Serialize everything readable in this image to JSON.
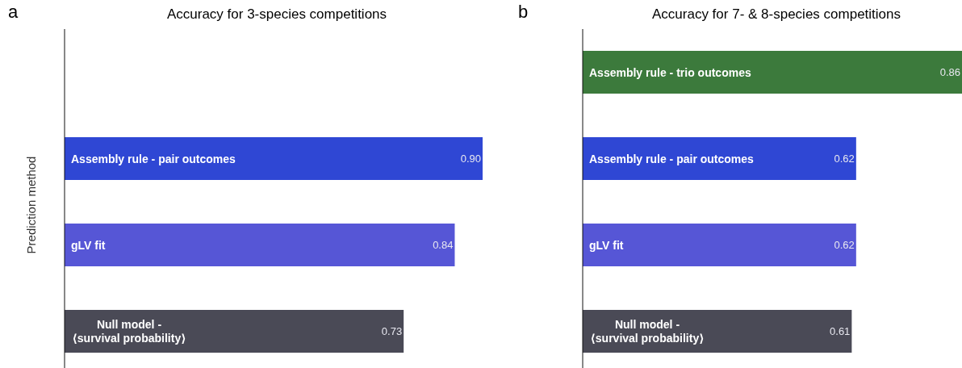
{
  "chart_data": [
    {
      "type": "bar",
      "orientation": "horizontal",
      "title": "Accuracy for 3-species competitions",
      "ylabel": "Prediction method",
      "annotations": [
        "a"
      ],
      "categories": [
        null,
        "Assembly rule - pair outcomes",
        "gLV fit",
        "Null model -\n⟨survival probability⟩"
      ],
      "values": [
        null,
        0.9,
        0.84,
        0.73
      ],
      "value_labels": [
        null,
        "0.90",
        "0.84",
        "0.73"
      ],
      "colors": [
        null,
        "#2f47d4",
        "#5656d6",
        "#4a4a56"
      ],
      "grid": false,
      "legend": false
    },
    {
      "type": "bar",
      "orientation": "horizontal",
      "title": "Accuracy for 7- & 8-species competitions",
      "annotations": [
        "b"
      ],
      "categories": [
        "Assembly rule - trio outcomes",
        "Assembly rule - pair outcomes",
        "gLV fit",
        "Null model -\n⟨survival probability⟩"
      ],
      "values": [
        0.86,
        0.62,
        0.62,
        0.61
      ],
      "value_labels": [
        "0.86",
        "0.62",
        "0.62",
        "0.61"
      ],
      "colors": [
        "#3c7a3c",
        "#2f47d4",
        "#5656d6",
        "#4a4a56"
      ],
      "grid": false,
      "legend": false
    }
  ]
}
